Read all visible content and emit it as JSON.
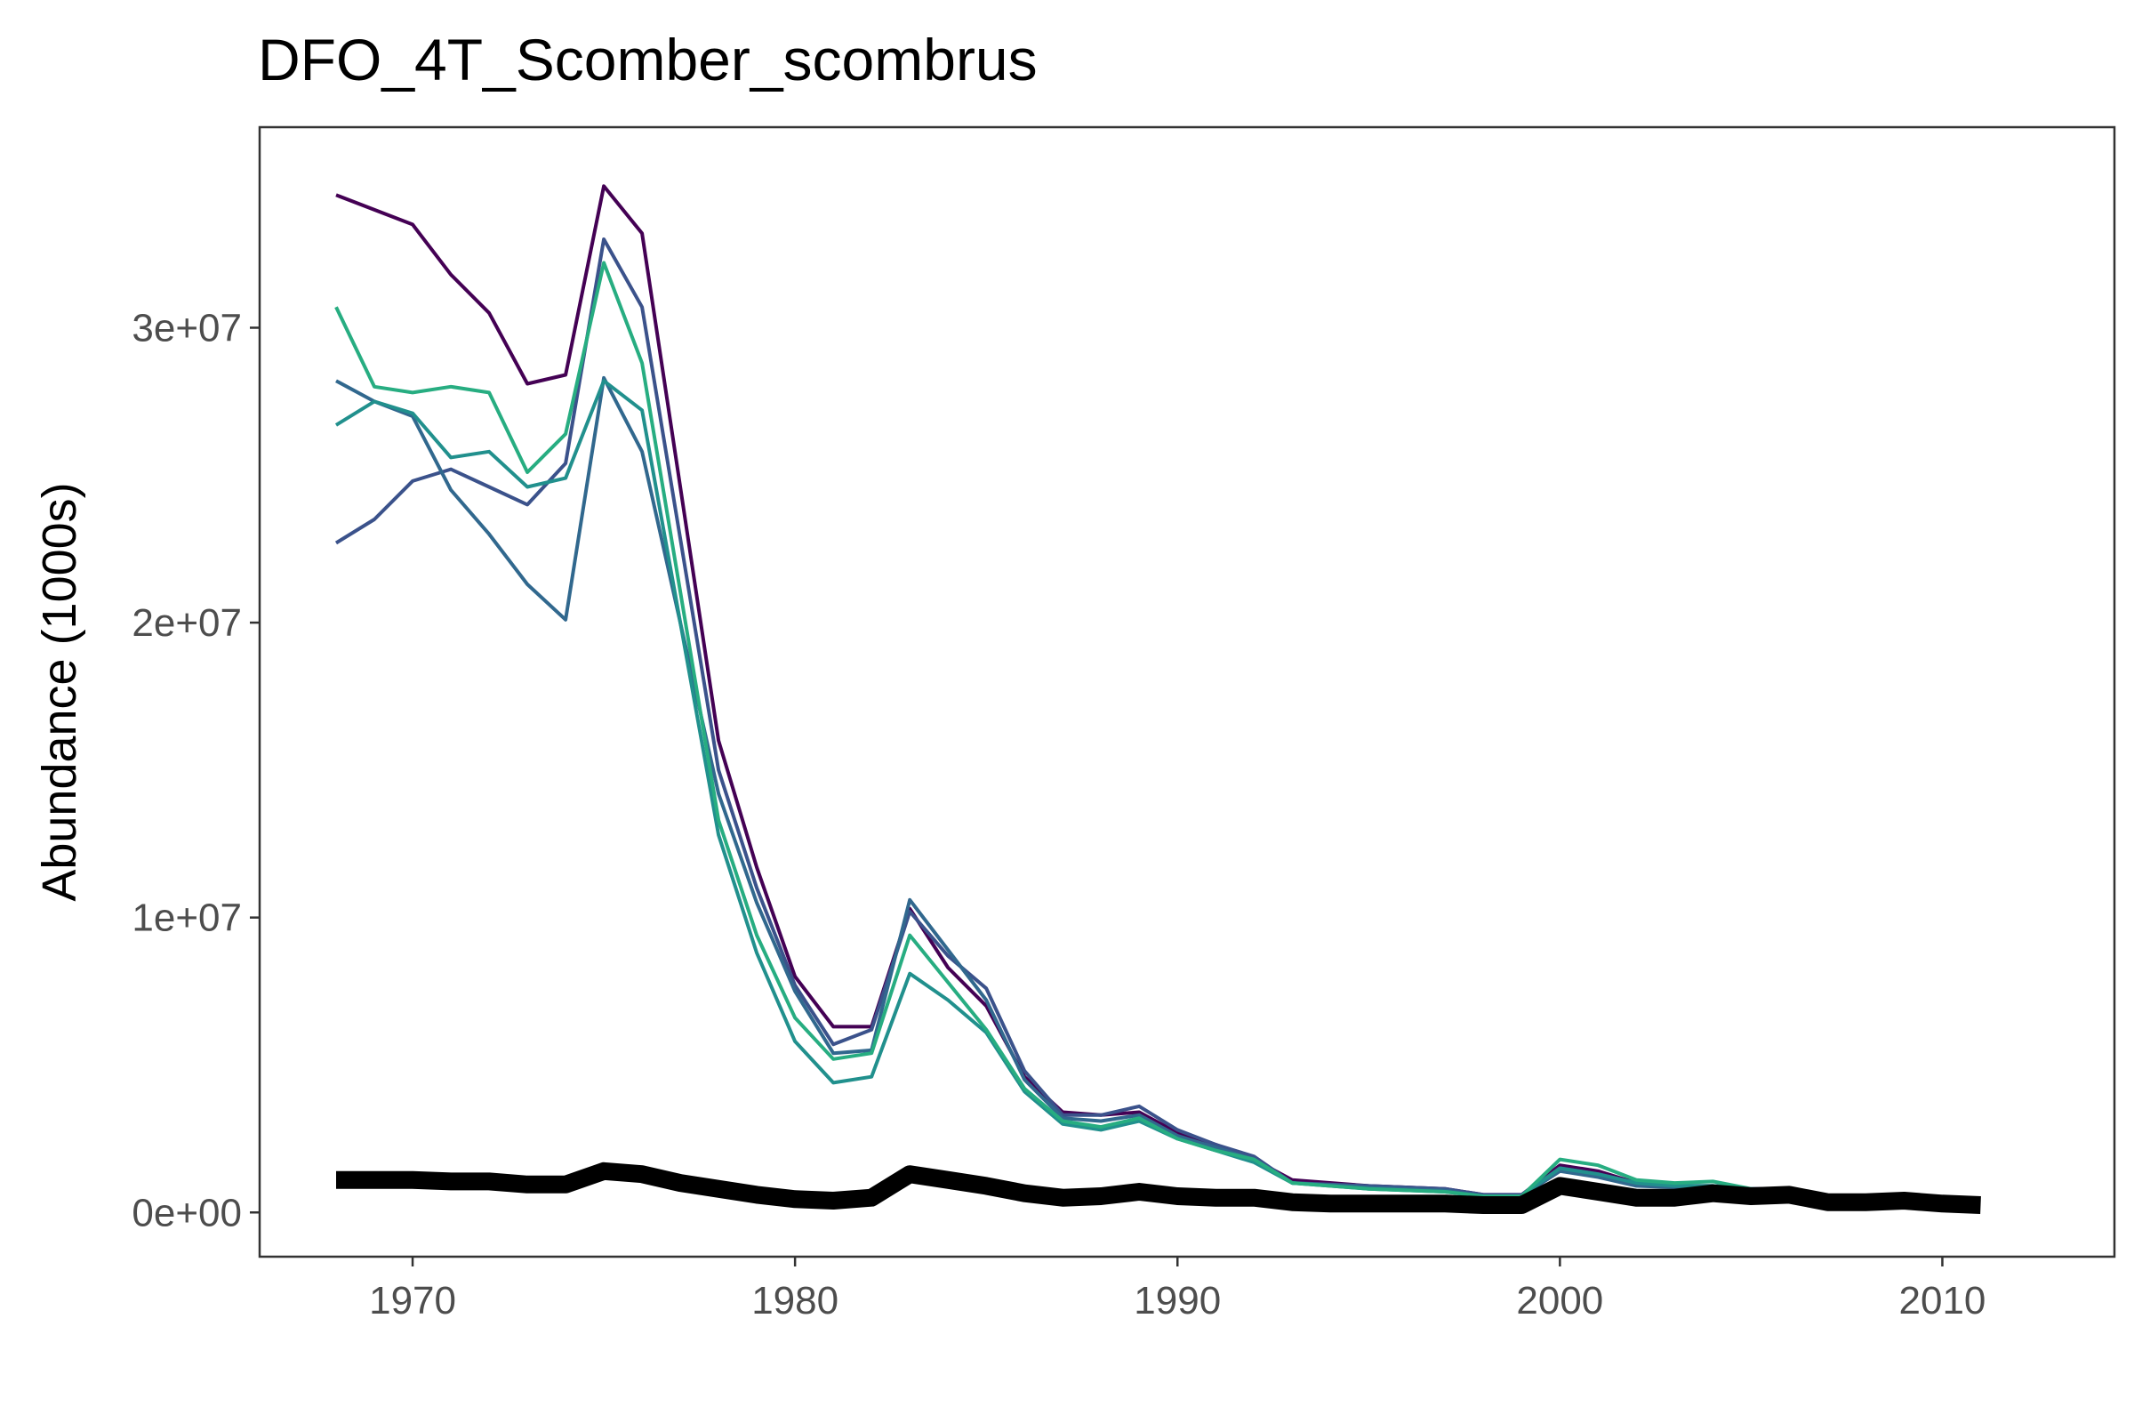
{
  "chart_data": {
    "type": "line",
    "title": "DFO_4T_Scomber_scombrus",
    "xlabel": "",
    "ylabel": "Abundance (1000s)",
    "xlim": [
      1966,
      2014.5
    ],
    "ylim": [
      -1500000,
      36800000
    ],
    "x_ticks": [
      1970,
      1980,
      1990,
      2000,
      2010
    ],
    "x_tick_labels": [
      "1970",
      "1980",
      "1990",
      "2000",
      "2010"
    ],
    "y_ticks": [
      0,
      10000000,
      20000000,
      30000000
    ],
    "y_tick_labels": [
      "0e+00",
      "1e+07",
      "2e+07",
      "3e+07"
    ],
    "grid": false,
    "legend": "none",
    "series": [
      {
        "color": "#440154",
        "width": 4,
        "x": [
          1968,
          1970,
          1971,
          1972,
          1973,
          1974,
          1975,
          1976,
          1978,
          1979,
          1980,
          1981,
          1982,
          1983,
          1984,
          1985,
          1986,
          1987,
          1988,
          1989,
          1990,
          1991,
          1992,
          1993,
          1995,
          1997,
          1998,
          1999,
          2000,
          2001,
          2002,
          2003,
          2004,
          2005,
          2006
        ],
        "y": [
          34500000,
          33500000,
          31800000,
          30500000,
          28100000,
          28400000,
          34800000,
          33200000,
          16000000,
          11700000,
          8000000,
          6300000,
          6300000,
          10300000,
          8300000,
          7000000,
          4600000,
          3400000,
          3300000,
          3400000,
          2700000,
          2300000,
          1800000,
          1100000,
          900000,
          800000,
          600000,
          600000,
          1600000,
          1400000,
          1000000,
          900000,
          900000,
          800000,
          800000
        ]
      },
      {
        "color": "#3b528b",
        "width": 4,
        "x": [
          1968,
          1969,
          1970,
          1971,
          1972,
          1973,
          1974,
          1975,
          1976,
          1978,
          1979,
          1980,
          1981,
          1982,
          1983,
          1984,
          1985,
          1986,
          1987,
          1988,
          1989,
          1990,
          1991,
          1992,
          1993,
          1995,
          1997,
          1998,
          1999,
          2000,
          2001,
          2002,
          2003,
          2004,
          2005,
          2006
        ],
        "y": [
          22700000,
          23500000,
          24800000,
          25200000,
          24600000,
          24000000,
          25400000,
          33000000,
          30700000,
          15000000,
          11000000,
          7700000,
          5700000,
          6200000,
          10200000,
          8700000,
          7600000,
          4800000,
          3300000,
          3300000,
          3600000,
          2800000,
          2300000,
          1900000,
          1000000,
          900000,
          800000,
          600000,
          600000,
          1500000,
          1300000,
          1000000,
          900000,
          900000,
          800000,
          800000
        ]
      },
      {
        "color": "#31688e",
        "width": 4,
        "x": [
          1968,
          1969,
          1970,
          1971,
          1972,
          1973,
          1974,
          1975,
          1976,
          1978,
          1979,
          1980,
          1981,
          1982,
          1983,
          1984,
          1985,
          1986,
          1987,
          1988,
          1989,
          1990,
          1991,
          1992,
          1993,
          1995,
          1997,
          1998,
          1999,
          2000,
          2001,
          2002,
          2003,
          2004,
          2005,
          2006
        ],
        "y": [
          28200000,
          27500000,
          27000000,
          24500000,
          23000000,
          21300000,
          20100000,
          28300000,
          25800000,
          14200000,
          10500000,
          7500000,
          5400000,
          5500000,
          10600000,
          8900000,
          7200000,
          4500000,
          3200000,
          3100000,
          3300000,
          2600000,
          2200000,
          1800000,
          1000000,
          850000,
          750000,
          550000,
          550000,
          1400000,
          1200000,
          900000,
          850000,
          850000,
          800000,
          750000
        ]
      },
      {
        "color": "#21908d",
        "width": 4,
        "x": [
          1968,
          1969,
          1970,
          1971,
          1972,
          1973,
          1974,
          1975,
          1976,
          1978,
          1979,
          1980,
          1981,
          1982,
          1983,
          1984,
          1985,
          1986,
          1987,
          1988,
          1989,
          1990,
          1991,
          1992,
          1993,
          1995,
          1997,
          1998,
          1999,
          2000,
          2001,
          2002,
          2003,
          2004,
          2005,
          2006
        ],
        "y": [
          26700000,
          27500000,
          27100000,
          25600000,
          25800000,
          24600000,
          24900000,
          28200000,
          27200000,
          12800000,
          8800000,
          5800000,
          4400000,
          4600000,
          8100000,
          7200000,
          6100000,
          4100000,
          3000000,
          2800000,
          3100000,
          2500000,
          2100000,
          1700000,
          1000000,
          800000,
          700000,
          550000,
          550000,
          1500000,
          1300000,
          1000000,
          900000,
          900000,
          800000,
          750000
        ]
      },
      {
        "color": "#27ad81",
        "width": 4,
        "x": [
          1968,
          1969,
          1970,
          1971,
          1972,
          1973,
          1974,
          1975,
          1976,
          1978,
          1979,
          1980,
          1981,
          1982,
          1983,
          1984,
          1985,
          1986,
          1987,
          1988,
          1989,
          1990,
          1991,
          1992,
          1993,
          1995,
          1997,
          1998,
          1999,
          2000,
          2001,
          2002,
          2003,
          2004,
          2005,
          2006
        ],
        "y": [
          30700000,
          28000000,
          27800000,
          28000000,
          27800000,
          25100000,
          26400000,
          32200000,
          28800000,
          13300000,
          9400000,
          6600000,
          5200000,
          5400000,
          9400000,
          7800000,
          6200000,
          4200000,
          3100000,
          2900000,
          3200000,
          2500000,
          2100000,
          1800000,
          1000000,
          800000,
          700000,
          550000,
          550000,
          1800000,
          1600000,
          1100000,
          1000000,
          1050000,
          800000,
          700000
        ]
      },
      {
        "color": "#000000",
        "width": 20,
        "x": [
          1968,
          1969,
          1970,
          1971,
          1972,
          1973,
          1974,
          1975,
          1976,
          1977,
          1978,
          1979,
          1980,
          1981,
          1982,
          1983,
          1984,
          1985,
          1986,
          1987,
          1988,
          1989,
          1990,
          1991,
          1992,
          1993,
          1994,
          1995,
          1996,
          1997,
          1998,
          1999,
          2000,
          2001,
          2002,
          2003,
          2004,
          2005,
          2006,
          2007,
          2008,
          2009,
          2010,
          2011
        ],
        "y": [
          1100000,
          1100000,
          1100000,
          1050000,
          1050000,
          950000,
          950000,
          1400000,
          1300000,
          1000000,
          800000,
          600000,
          450000,
          400000,
          500000,
          1300000,
          1100000,
          900000,
          650000,
          500000,
          550000,
          700000,
          550000,
          500000,
          500000,
          350000,
          300000,
          300000,
          300000,
          300000,
          250000,
          250000,
          900000,
          700000,
          500000,
          500000,
          650000,
          550000,
          600000,
          350000,
          350000,
          400000,
          300000,
          250000
        ]
      }
    ]
  }
}
